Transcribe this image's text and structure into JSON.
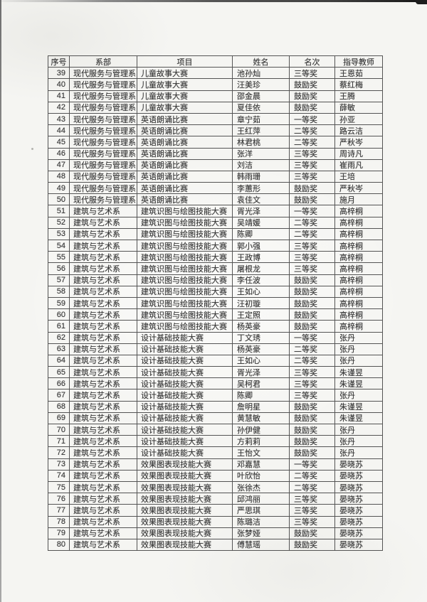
{
  "document": {
    "kind": "scanned award results list (rows 39-80)",
    "table": {
      "headers": [
        "序号",
        "系部",
        "项目",
        "姓名",
        "名次",
        "指导教师"
      ],
      "rows": [
        [
          "39",
          "现代服务与管理系",
          "儿童故事大赛",
          "池孙灿",
          "三等奖",
          "王恩茹"
        ],
        [
          "40",
          "现代服务与管理系",
          "儿童故事大赛",
          "汪美珍",
          "鼓励奖",
          "蔡红梅"
        ],
        [
          "41",
          "现代服务与管理系",
          "儿童故事大赛",
          "邵金晨",
          "鼓励奖",
          "王腾"
        ],
        [
          "42",
          "现代服务与管理系",
          "儿童故事大赛",
          "夏佳依",
          "鼓励奖",
          "薛敏"
        ],
        [
          "43",
          "现代服务与管理系",
          "英语朗诵比赛",
          "章宁茹",
          "一等奖",
          "孙亚"
        ],
        [
          "44",
          "现代服务与管理系",
          "英语朗诵比赛",
          "王红萍",
          "二等奖",
          "路云洁"
        ],
        [
          "45",
          "现代服务与管理系",
          "英语朗诵比赛",
          "林君桃",
          "二等奖",
          "严秋岑"
        ],
        [
          "46",
          "现代服务与管理系",
          "英语朗诵比赛",
          "张洋",
          "三等奖",
          "周诗凡"
        ],
        [
          "47",
          "现代服务与管理系",
          "英语朗诵比赛",
          "刘洁",
          "三等奖",
          "崔雨凡"
        ],
        [
          "48",
          "现代服务与管理系",
          "英语朗诵比赛",
          "韩雨珊",
          "三等奖",
          "王培"
        ],
        [
          "49",
          "现代服务与管理系",
          "英语朗诵比赛",
          "李蕙形",
          "鼓励奖",
          "严秋岑"
        ],
        [
          "50",
          "现代服务与管理系",
          "英语朗诵比赛",
          "袁佳文",
          "鼓励奖",
          "施月"
        ],
        [
          "51",
          "建筑与艺术系",
          "建筑识图与绘图技能大赛",
          "胥光泽",
          "一等奖",
          "高梓桐"
        ],
        [
          "52",
          "建筑与艺术系",
          "建筑识图与绘图技能大赛",
          "吴靖媛",
          "二等奖",
          "高梓桐"
        ],
        [
          "53",
          "建筑与艺术系",
          "建筑识图与绘图技能大赛",
          "陈卿",
          "二等奖",
          "高梓桐"
        ],
        [
          "54",
          "建筑与艺术系",
          "建筑识图与绘图技能大赛",
          "郭小强",
          "三等奖",
          "高梓桐"
        ],
        [
          "55",
          "建筑与艺术系",
          "建筑识图与绘图技能大赛",
          "王政博",
          "三等奖",
          "高梓桐"
        ],
        [
          "56",
          "建筑与艺术系",
          "建筑识图与绘图技能大赛",
          "屠根龙",
          "三等奖",
          "高梓桐"
        ],
        [
          "57",
          "建筑与艺术系",
          "建筑识图与绘图技能大赛",
          "李任波",
          "鼓励奖",
          "高梓桐"
        ],
        [
          "58",
          "建筑与艺术系",
          "建筑识图与绘图技能大赛",
          "王如心",
          "鼓励奖",
          "高梓桐"
        ],
        [
          "59",
          "建筑与艺术系",
          "建筑识图与绘图技能大赛",
          "汪初璇",
          "鼓励奖",
          "高梓桐"
        ],
        [
          "60",
          "建筑与艺术系",
          "建筑识图与绘图技能大赛",
          "王定照",
          "鼓励奖",
          "高梓桐"
        ],
        [
          "61",
          "建筑与艺术系",
          "建筑识图与绘图技能大赛",
          "杨英豪",
          "鼓励奖",
          "高梓桐"
        ],
        [
          "62",
          "建筑与艺术系",
          "设计基础技能大赛",
          "丁文琇",
          "一等奖",
          "张丹"
        ],
        [
          "63",
          "建筑与艺术系",
          "设计基础技能大赛",
          "杨英豪",
          "二等奖",
          "张丹"
        ],
        [
          "64",
          "建筑与艺术系",
          "设计基础技能大赛",
          "王如心",
          "二等奖",
          "张丹"
        ],
        [
          "65",
          "建筑与艺术系",
          "设计基础技能大赛",
          "胥光泽",
          "三等奖",
          "朱谨昱"
        ],
        [
          "66",
          "建筑与艺术系",
          "设计基础技能大赛",
          "吴柯君",
          "三等奖",
          "朱谨昱"
        ],
        [
          "67",
          "建筑与艺术系",
          "设计基础技能大赛",
          "陈卿",
          "三等奖",
          "张丹"
        ],
        [
          "68",
          "建筑与艺术系",
          "设计基础技能大赛",
          "詹明星",
          "鼓励奖",
          "朱谨昱"
        ],
        [
          "69",
          "建筑与艺术系",
          "设计基础技能大赛",
          "黄慧敏",
          "鼓励奖",
          "朱谨昱"
        ],
        [
          "70",
          "建筑与艺术系",
          "设计基础技能大赛",
          "孙伊健",
          "鼓励奖",
          "张丹"
        ],
        [
          "71",
          "建筑与艺术系",
          "设计基础技能大赛",
          "方莉莉",
          "鼓励奖",
          "张丹"
        ],
        [
          "72",
          "建筑与艺术系",
          "设计基础技能大赛",
          "王怡文",
          "鼓励奖",
          "张丹"
        ],
        [
          "73",
          "建筑与艺术系",
          "效果图表现技能大赛",
          "邓嘉慧",
          "一等奖",
          "晏晓苏"
        ],
        [
          "74",
          "建筑与艺术系",
          "效果图表现技能大赛",
          "叶欣怡",
          "二等奖",
          "晏晓苏"
        ],
        [
          "75",
          "建筑与艺术系",
          "效果图表现技能大赛",
          "张徐杰",
          "二等奖",
          "晏晓苏"
        ],
        [
          "76",
          "建筑与艺术系",
          "效果图表现技能大赛",
          "邱鸿丽",
          "三等奖",
          "晏晓苏"
        ],
        [
          "77",
          "建筑与艺术系",
          "效果图表现技能大赛",
          "严思琪",
          "三等奖",
          "晏晓苏"
        ],
        [
          "78",
          "建筑与艺术系",
          "效果图表现技能大赛",
          "陈璐洁",
          "三等奖",
          "晏晓苏"
        ],
        [
          "79",
          "建筑与艺术系",
          "效果图表现技能大赛",
          "张梦娅",
          "鼓励奖",
          "晏晓苏"
        ],
        [
          "80",
          "建筑与艺术系",
          "效果图表现技能大赛",
          "傅慧瑶",
          "鼓励奖",
          "晏晓苏"
        ]
      ]
    }
  },
  "colors": {
    "paper": "#f5f5f2",
    "ink": "#3a3a3a",
    "table_border": "#545454",
    "scan_edge_dark": "#222222"
  }
}
